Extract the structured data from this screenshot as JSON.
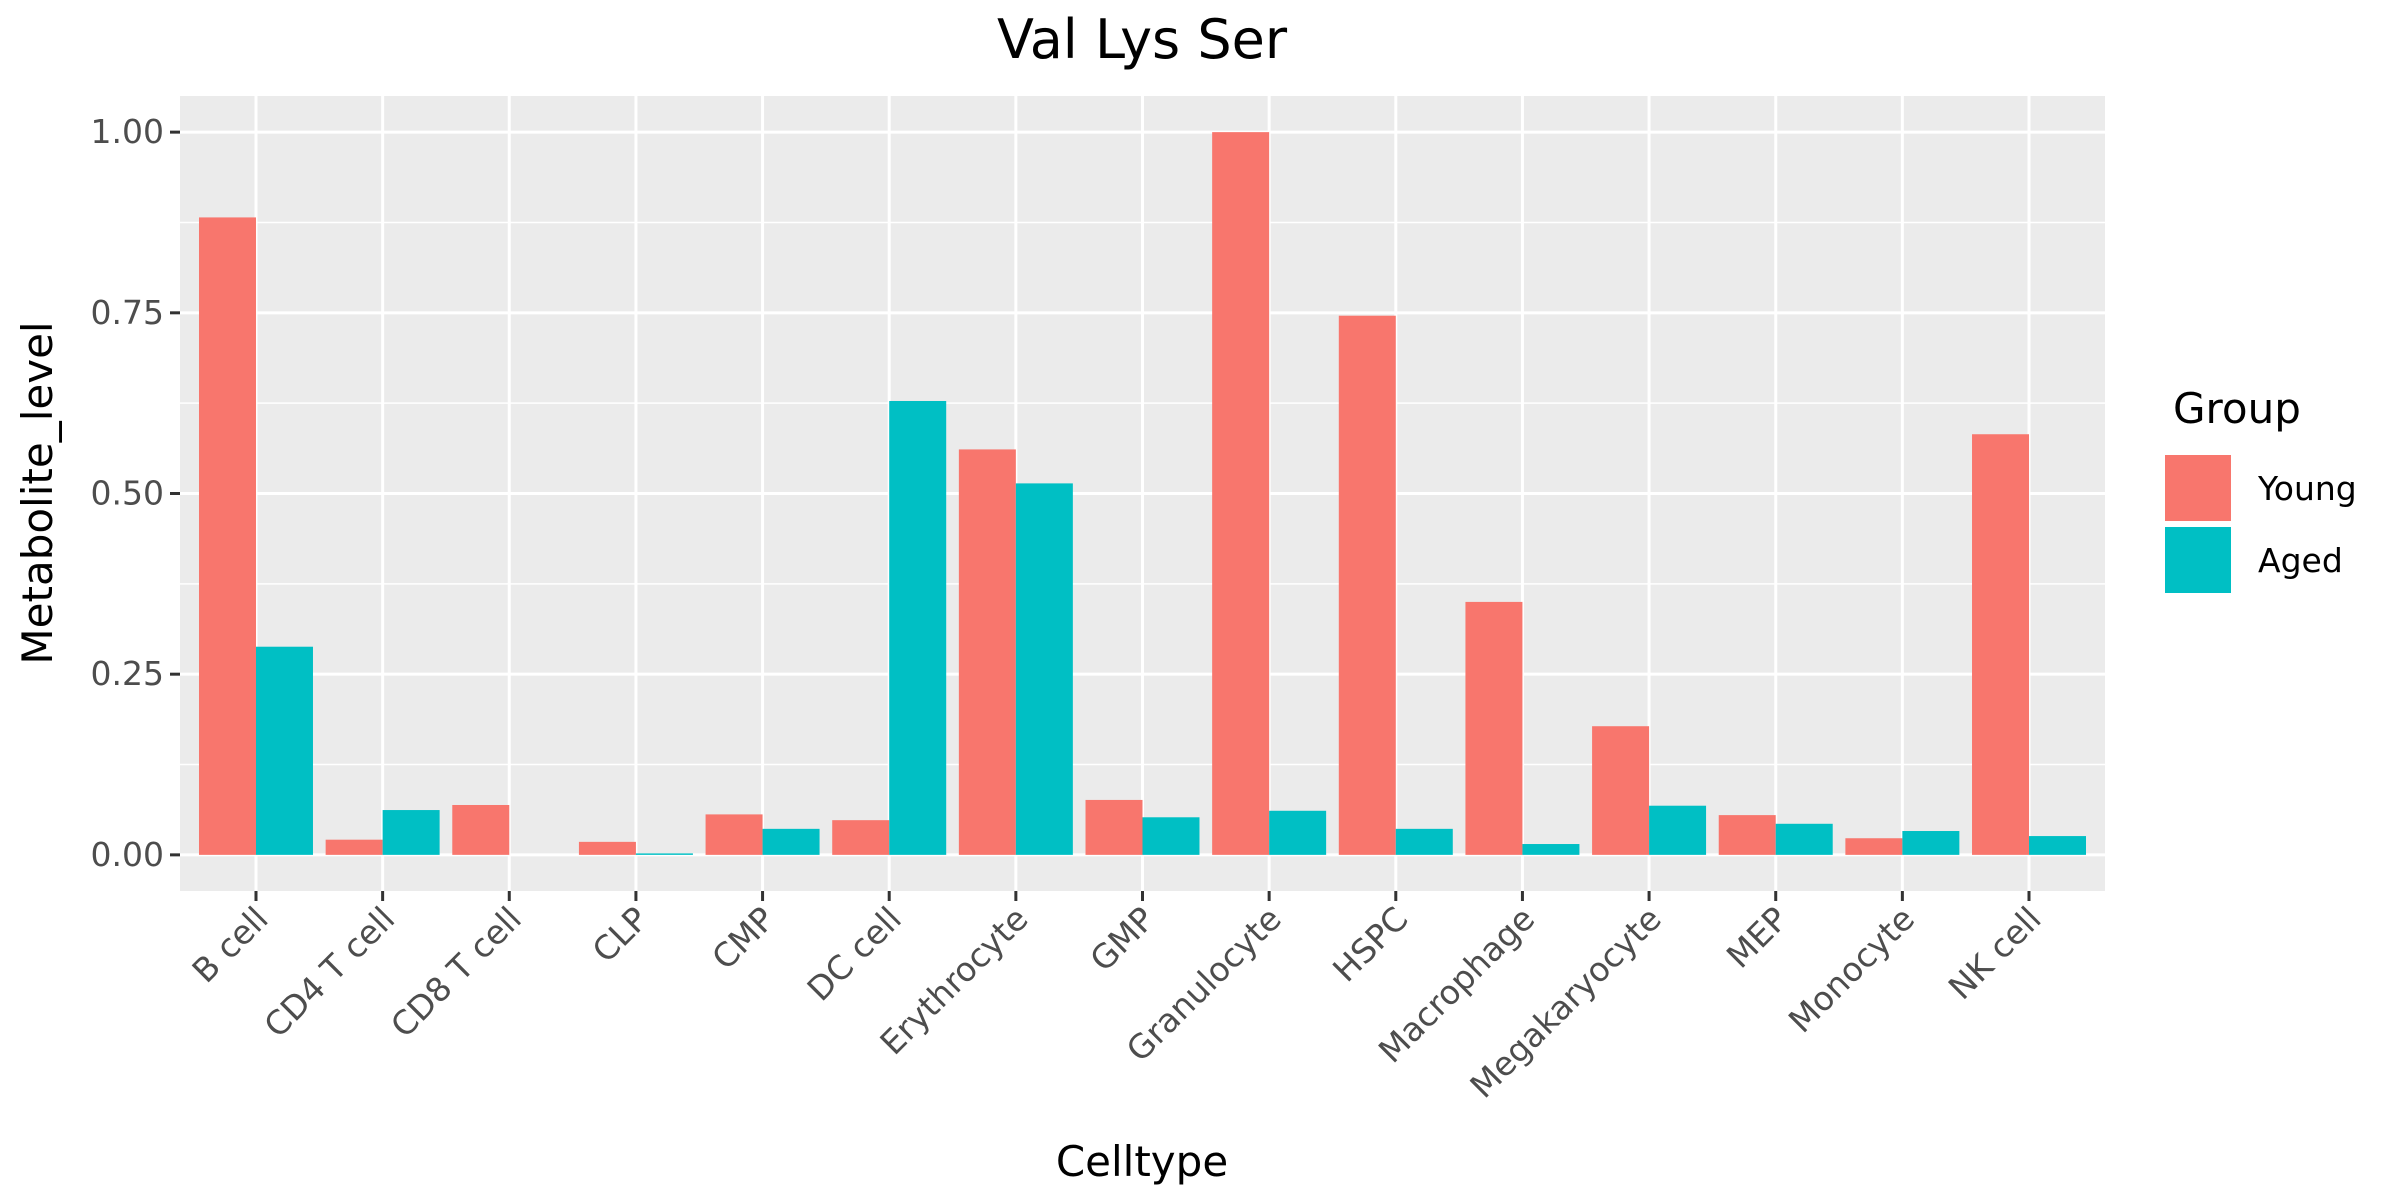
{
  "chart_data": {
    "type": "bar",
    "title": "Val Lys Ser",
    "xlabel": "Celltype",
    "ylabel": "Metabolite_level",
    "ylim": [
      -0.05,
      1.05
    ],
    "yticks": [
      0.0,
      0.25,
      0.5,
      0.75,
      1.0
    ],
    "ytick_labels": [
      "0.00",
      "0.25",
      "0.50",
      "0.75",
      "1.00"
    ],
    "categories": [
      "B cell",
      "CD4 T cell",
      "CD8 T cell",
      "CLP",
      "CMP",
      "DC cell",
      "Erythrocyte",
      "GMP",
      "Granulocyte",
      "HSPC",
      "Macrophage",
      "Megakaryocyte",
      "MEP",
      "Monocyte",
      "NK cell"
    ],
    "series": [
      {
        "name": "Young",
        "color": "#F8766D",
        "values": [
          0.882,
          0.021,
          0.069,
          0.018,
          0.056,
          0.048,
          0.561,
          0.076,
          1.0,
          0.746,
          0.35,
          0.178,
          0.055,
          0.023,
          0.582
        ]
      },
      {
        "name": "Aged",
        "color": "#00BFC4",
        "values": [
          0.288,
          0.062,
          0.0,
          0.002,
          0.036,
          0.628,
          0.514,
          0.052,
          0.061,
          0.036,
          0.015,
          0.068,
          0.043,
          0.033,
          0.026
        ]
      }
    ],
    "legend": {
      "title": "Group",
      "placement": "right"
    },
    "grid": true,
    "panel_background": "#EBEBEB"
  }
}
